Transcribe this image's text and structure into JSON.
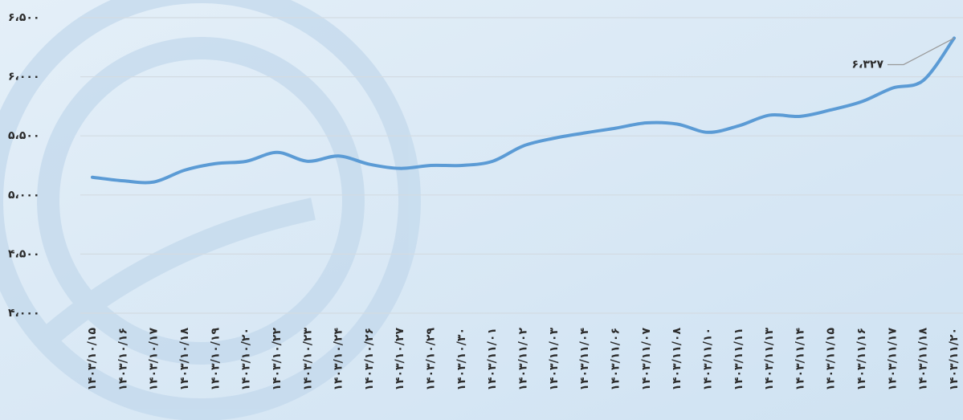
{
  "chart_data": {
    "type": "line",
    "categories": [
      "۱۴۰۳/۱۰/۱۵",
      "۱۴۰۳/۱۰/۱۶",
      "۱۴۰۳/۱۰/۱۷",
      "۱۴۰۳/۱۰/۱۸",
      "۱۴۰۳/۱۰/۱۹",
      "۱۴۰۳/۱۰/۲۰",
      "۱۴۰۳/۱۰/۲۲",
      "۱۴۰۳/۱۰/۲۳",
      "۱۴۰۳/۱۰/۲۴",
      "۱۴۰۳/۱۰/۲۶",
      "۱۴۰۳/۱۰/۲۷",
      "۱۴۰۳/۱۰/۲۹",
      "۱۴۰۳/۱۰/۳۰",
      "۱۴۰۳/۱۱/۰۱",
      "۱۴۰۳/۱۱/۰۲",
      "۱۴۰۳/۱۱/۰۳",
      "۱۴۰۳/۱۱/۰۴",
      "۱۴۰۳/۱۱/۰۶",
      "۱۴۰۳/۱۱/۰۷",
      "۱۴۰۳/۱۱/۰۸",
      "۱۴۰۳/۱۱/۱۰",
      "۱۴۰۳/۱۱/۱۱",
      "۱۴۰۳/۱۱/۱۳",
      "۱۴۰۳/۱۱/۱۴",
      "۱۴۰۳/۱۱/۱۵",
      "۱۴۰۳/۱۱/۱۶",
      "۱۴۰۳/۱۱/۱۷",
      "۱۴۰۳/۱۱/۱۸",
      "۱۴۰۳/۱۱/۲۰"
    ],
    "values": [
      5150,
      5120,
      5110,
      5210,
      5265,
      5285,
      5360,
      5285,
      5330,
      5260,
      5225,
      5250,
      5250,
      5285,
      5415,
      5480,
      5525,
      5565,
      5610,
      5600,
      5530,
      5585,
      5675,
      5665,
      5720,
      5790,
      5905,
      5970,
      6327
    ],
    "value_labels": [
      null,
      null,
      null,
      null,
      null,
      null,
      null,
      null,
      null,
      null,
      null,
      null,
      null,
      null,
      null,
      null,
      null,
      null,
      null,
      null,
      null,
      null,
      null,
      null,
      null,
      null,
      null,
      null,
      "۶،۳۲۷"
    ],
    "color": "#5b9bd5",
    "ylim": [
      4000,
      6500
    ],
    "yticks": [
      {
        "value": 4000,
        "label": "۴،۰۰۰"
      },
      {
        "value": 4500,
        "label": "۴،۵۰۰"
      },
      {
        "value": 5000,
        "label": "۵،۰۰۰"
      },
      {
        "value": 5500,
        "label": "۵،۵۰۰"
      },
      {
        "value": 6000,
        "label": "۶،۰۰۰"
      },
      {
        "value": 6500,
        "label": "۶،۵۰۰"
      }
    ],
    "grid": true
  }
}
